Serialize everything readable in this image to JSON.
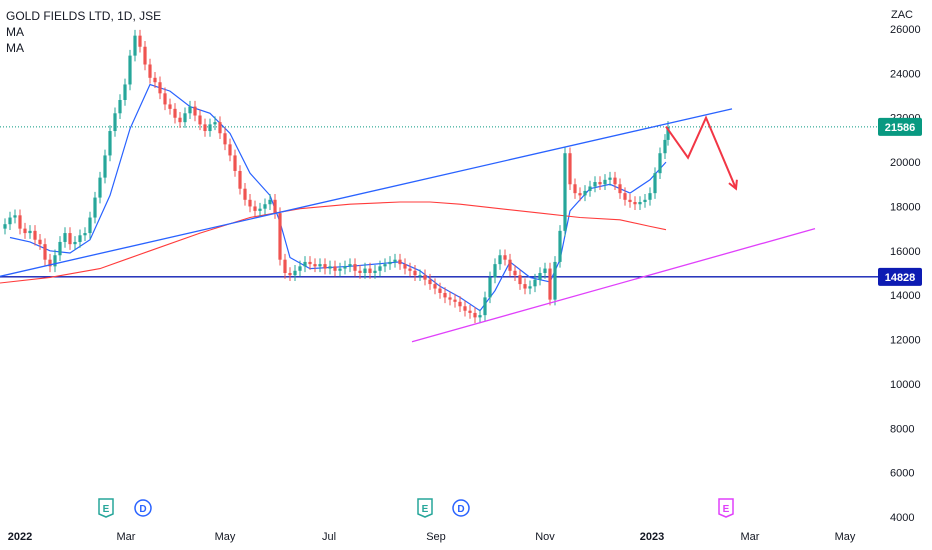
{
  "header": {
    "symbol_title": "GOLD FIELDS LTD, 1D, JSE",
    "ma1_label": "MA",
    "ma2_label": "MA"
  },
  "chart_data": {
    "type": "line",
    "title": "GOLD FIELDS LTD, 1D, JSE",
    "currency_label": "ZAC",
    "ylim": [
      4000,
      26500
    ],
    "y_ticks": [
      4000,
      6000,
      8000,
      10000,
      12000,
      14000,
      16000,
      18000,
      20000,
      22000,
      24000,
      26000
    ],
    "x_ticks": [
      "2022",
      "Mar",
      "May",
      "Jul",
      "Sep",
      "Nov",
      "2023",
      "Mar",
      "May"
    ],
    "series": [
      {
        "kind": "candles",
        "points": [
          [
            0,
            17000
          ],
          [
            5,
            17200
          ],
          [
            10,
            17500
          ],
          [
            15,
            17600
          ],
          [
            20,
            17000
          ],
          [
            25,
            16800
          ],
          [
            30,
            16900
          ],
          [
            35,
            16500
          ],
          [
            40,
            16300
          ],
          [
            45,
            15600
          ],
          [
            50,
            15300
          ],
          [
            55,
            15800
          ],
          [
            60,
            16400
          ],
          [
            65,
            16800
          ],
          [
            70,
            16300
          ],
          [
            75,
            16400
          ],
          [
            80,
            16700
          ],
          [
            85,
            16800
          ],
          [
            90,
            17500
          ],
          [
            95,
            18400
          ],
          [
            100,
            19300
          ],
          [
            105,
            20300
          ],
          [
            110,
            21400
          ],
          [
            115,
            22200
          ],
          [
            120,
            22800
          ],
          [
            125,
            23500
          ],
          [
            130,
            24800
          ],
          [
            135,
            25700
          ],
          [
            140,
            25200
          ],
          [
            145,
            24400
          ],
          [
            150,
            23800
          ],
          [
            155,
            23600
          ],
          [
            160,
            23100
          ],
          [
            165,
            22600
          ],
          [
            170,
            22400
          ],
          [
            175,
            22000
          ],
          [
            180,
            21800
          ],
          [
            185,
            22200
          ],
          [
            190,
            22500
          ],
          [
            195,
            22100
          ],
          [
            200,
            21700
          ],
          [
            205,
            21400
          ],
          [
            210,
            21700
          ],
          [
            215,
            21800
          ],
          [
            220,
            21300
          ],
          [
            225,
            20800
          ],
          [
            230,
            20300
          ],
          [
            235,
            19600
          ],
          [
            240,
            18800
          ],
          [
            245,
            18300
          ],
          [
            250,
            18000
          ],
          [
            255,
            17800
          ],
          [
            260,
            17900
          ],
          [
            265,
            18100
          ],
          [
            270,
            18300
          ],
          [
            275,
            17700
          ],
          [
            280,
            15600
          ],
          [
            285,
            15000
          ],
          [
            290,
            14900
          ],
          [
            295,
            15100
          ],
          [
            300,
            15300
          ],
          [
            305,
            15500
          ],
          [
            310,
            15400
          ],
          [
            315,
            15300
          ],
          [
            320,
            15400
          ],
          [
            325,
            15200
          ],
          [
            330,
            15300
          ],
          [
            335,
            15100
          ],
          [
            340,
            15200
          ],
          [
            345,
            15300
          ],
          [
            350,
            15400
          ],
          [
            355,
            15100
          ],
          [
            360,
            15000
          ],
          [
            365,
            15200
          ],
          [
            370,
            15000
          ],
          [
            375,
            15100
          ],
          [
            380,
            15300
          ],
          [
            385,
            15400
          ],
          [
            390,
            15500
          ],
          [
            395,
            15600
          ],
          [
            400,
            15400
          ],
          [
            405,
            15200
          ],
          [
            410,
            15100
          ],
          [
            415,
            14900
          ],
          [
            420,
            14900
          ],
          [
            425,
            14700
          ],
          [
            430,
            14500
          ],
          [
            435,
            14300
          ],
          [
            440,
            14100
          ],
          [
            445,
            13900
          ],
          [
            450,
            13800
          ],
          [
            455,
            13700
          ],
          [
            460,
            13500
          ],
          [
            465,
            13300
          ],
          [
            470,
            13200
          ],
          [
            475,
            13000
          ],
          [
            480,
            13100
          ],
          [
            485,
            13900
          ],
          [
            490,
            14800
          ],
          [
            495,
            15400
          ],
          [
            500,
            15800
          ],
          [
            505,
            15600
          ],
          [
            510,
            15100
          ],
          [
            515,
            14900
          ],
          [
            520,
            14500
          ],
          [
            525,
            14300
          ],
          [
            530,
            14400
          ],
          [
            535,
            14700
          ],
          [
            540,
            15000
          ],
          [
            545,
            15200
          ],
          [
            550,
            13800
          ],
          [
            555,
            15500
          ],
          [
            560,
            16900
          ],
          [
            565,
            20400
          ],
          [
            570,
            19000
          ],
          [
            575,
            18600
          ],
          [
            580,
            18500
          ],
          [
            585,
            18700
          ],
          [
            590,
            18900
          ],
          [
            595,
            19100
          ],
          [
            600,
            19000
          ],
          [
            605,
            19200
          ],
          [
            610,
            19300
          ],
          [
            615,
            19000
          ],
          [
            620,
            18600
          ],
          [
            625,
            18300
          ],
          [
            630,
            18200
          ],
          [
            635,
            18100
          ],
          [
            640,
            18200
          ],
          [
            645,
            18300
          ],
          [
            650,
            18600
          ],
          [
            655,
            19500
          ],
          [
            660,
            20400
          ],
          [
            665,
            21000
          ],
          [
            668,
            21586
          ]
        ]
      },
      {
        "name": "",
        "color": "#2962ff",
        "points": [
          [
            10,
            16600
          ],
          [
            30,
            16400
          ],
          [
            50,
            16000
          ],
          [
            70,
            15900
          ],
          [
            90,
            16500
          ],
          [
            110,
            18500
          ],
          [
            130,
            21500
          ],
          [
            150,
            23500
          ],
          [
            170,
            23200
          ],
          [
            190,
            22500
          ],
          [
            210,
            22200
          ],
          [
            230,
            21300
          ],
          [
            250,
            19500
          ],
          [
            270,
            18500
          ],
          [
            280,
            17300
          ],
          [
            290,
            15700
          ],
          [
            310,
            15200
          ],
          [
            350,
            15300
          ],
          [
            400,
            15500
          ],
          [
            420,
            15100
          ],
          [
            440,
            14400
          ],
          [
            460,
            13900
          ],
          [
            480,
            13300
          ],
          [
            495,
            14200
          ],
          [
            510,
            15500
          ],
          [
            530,
            14800
          ],
          [
            550,
            14600
          ],
          [
            560,
            15600
          ],
          [
            570,
            17800
          ],
          [
            590,
            18800
          ],
          [
            610,
            19000
          ],
          [
            630,
            18600
          ],
          [
            650,
            19200
          ],
          [
            666,
            20000
          ]
        ]
      },
      {
        "name": "",
        "color": "#ff3b3b",
        "points": [
          [
            0,
            14550
          ],
          [
            50,
            14800
          ],
          [
            100,
            15200
          ],
          [
            150,
            16000
          ],
          [
            200,
            16800
          ],
          [
            250,
            17500
          ],
          [
            300,
            17900
          ],
          [
            350,
            18100
          ],
          [
            400,
            18200
          ],
          [
            430,
            18200
          ],
          [
            460,
            18100
          ],
          [
            500,
            17900
          ],
          [
            540,
            17700
          ],
          [
            580,
            17500
          ],
          [
            620,
            17400
          ],
          [
            650,
            17100
          ],
          [
            666,
            16950
          ]
        ]
      }
    ],
    "annotations": {
      "upper_trendline": {
        "from": [
          0,
          14850
        ],
        "to": [
          732,
          22400
        ],
        "color": "#2962ff"
      },
      "horizontal_level": {
        "value": 14828,
        "color": "#0d1bb3"
      },
      "current_price_line": {
        "value": 21586,
        "color": "#089981"
      },
      "lower_trendline": {
        "from": [
          412,
          11900
        ],
        "to": [
          815,
          17000
        ],
        "color": "#e040fb"
      },
      "projection_path": {
        "points": [
          [
            666,
            21600
          ],
          [
            688,
            20200
          ],
          [
            706,
            22000
          ],
          [
            736,
            18800
          ]
        ],
        "color": "#f23645"
      },
      "price_tags": [
        {
          "label": "21586",
          "value": 21586,
          "color": "#089981"
        },
        {
          "label": "14828",
          "value": 14828,
          "color": "#0d1bb3"
        }
      ],
      "event_markers": [
        {
          "letter": "E",
          "x": 106,
          "color": "#26a69a"
        },
        {
          "letter": "D",
          "x": 143,
          "color": "#2962ff"
        },
        {
          "letter": "E",
          "x": 425,
          "color": "#26a69a"
        },
        {
          "letter": "D",
          "x": 461,
          "color": "#2962ff"
        },
        {
          "letter": "E",
          "x": 726,
          "color": "#e040fb"
        }
      ]
    },
    "colors": {
      "up": "#26a69a",
      "down": "#ef5350",
      "background": "#ffffff",
      "axis_text": "#131722"
    },
    "grid": false
  }
}
